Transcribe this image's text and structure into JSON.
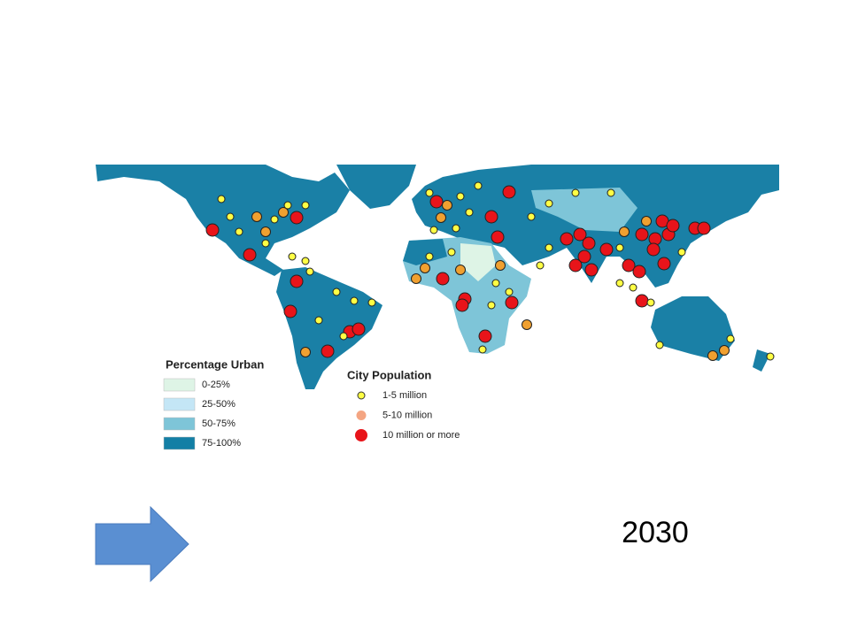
{
  "map_legend": {
    "urban": {
      "title": "Percentage Urban",
      "items": [
        {
          "label": "0-25%",
          "color": "#def4e6"
        },
        {
          "label": "25-50%",
          "color": "#c4e6f6"
        },
        {
          "label": "50-75%",
          "color": "#7ec5d8"
        },
        {
          "label": "75-100%",
          "color": "#137fa5"
        }
      ]
    },
    "population": {
      "title": "City Population",
      "items": [
        {
          "label": "1-5 million",
          "color": "#ffff44"
        },
        {
          "label": "5-10 million",
          "color": "#f4a582"
        },
        {
          "label": "10 million or more",
          "color": "#e8141a"
        }
      ]
    }
  },
  "year_label": "2030"
}
